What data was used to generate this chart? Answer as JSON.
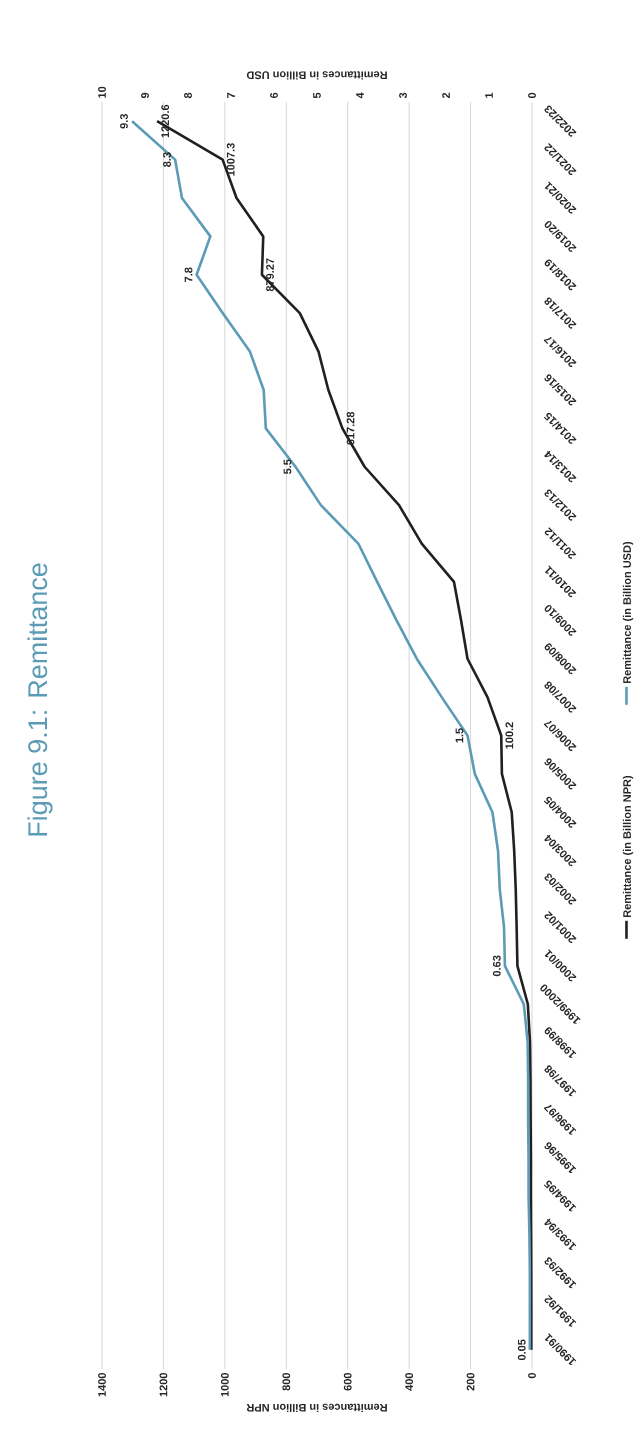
{
  "chart_data": {
    "type": "line",
    "orientation": "horizontal",
    "title": "Figure 9.1: Remittance",
    "xlabel": "Remittances in Billion NPR",
    "x2label": "Remittances in Billion USD",
    "categories": [
      "2022/23",
      "2021/22",
      "2020/21",
      "2019/20",
      "2018/19",
      "2017/18",
      "2016/17",
      "2015/16",
      "2014/15",
      "2013/14",
      "2012/13",
      "2011/12",
      "2010/11",
      "2009/10",
      "2008/09",
      "2007/08",
      "2006/07",
      "2005/06",
      "2004/05",
      "2003/04",
      "2002/03",
      "2001/02",
      "2000/01",
      "1999/2000",
      "1998/99",
      "1997/98",
      "1996/97",
      "1995/96",
      "1994/95",
      "1993/94",
      "1992/93",
      "1991/92",
      "1990/91"
    ],
    "series": [
      {
        "name": "Remittance (in Billion NPR)",
        "color": "#231f20",
        "values": [
          1220.6,
          1007.3,
          962,
          875,
          879.27,
          756,
          695,
          663,
          617.28,
          545,
          433,
          359,
          254,
          231,
          210,
          145,
          100.2,
          98,
          66,
          58,
          53,
          50,
          47.5,
          13.5,
          6.5,
          5,
          4.5,
          3.6,
          3.7,
          3,
          2.4,
          2.2,
          2.3
        ],
        "value_labels": [
          "1220.6",
          "1007.3",
          null,
          null,
          "879.27",
          null,
          null,
          null,
          "617.28",
          null,
          null,
          null,
          null,
          null,
          null,
          null,
          "100.2",
          null,
          null,
          null,
          null,
          null,
          null,
          null,
          null,
          null,
          null,
          null,
          null,
          null,
          null,
          null,
          null
        ]
      },
      {
        "name": "Remittance (in Billion USD)",
        "color": "#5b9bb5",
        "axis": "x2",
        "values": [
          9.3,
          8.3,
          8.14,
          7.48,
          7.8,
          7.19,
          6.56,
          6.24,
          6.19,
          5.5,
          4.91,
          4.04,
          3.6,
          3.15,
          2.68,
          2.1,
          1.5,
          1.33,
          0.92,
          0.79,
          0.75,
          0.65,
          0.63,
          0.19,
          0.1,
          0.09,
          0.09,
          0.08,
          0.08,
          0.06,
          0.05,
          0.05,
          0.05
        ],
        "value_labels": [
          "9.3",
          "8.3",
          null,
          null,
          "7.8",
          null,
          null,
          null,
          null,
          "5.5",
          null,
          null,
          null,
          null,
          null,
          null,
          "1.5",
          null,
          null,
          null,
          null,
          null,
          "0.63",
          null,
          null,
          null,
          null,
          null,
          null,
          null,
          null,
          null,
          "0.05"
        ]
      }
    ],
    "xlim": [
      1400,
      0
    ],
    "xticks": [
      0,
      200,
      400,
      600,
      800,
      1000,
      1200,
      1400
    ],
    "x2lim": [
      10,
      0
    ],
    "x2ticks": [
      0,
      1,
      2,
      3,
      4,
      5,
      6,
      7,
      8,
      9,
      10
    ],
    "grid": "x",
    "legend": "right"
  }
}
